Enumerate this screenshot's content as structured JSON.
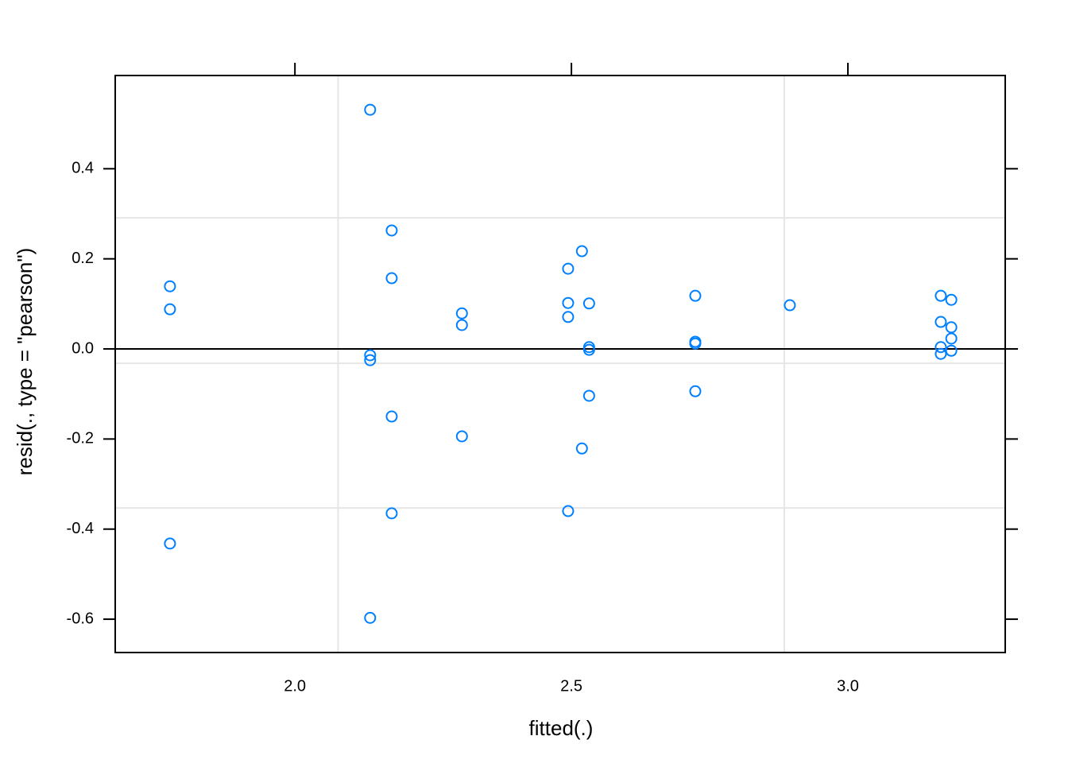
{
  "chart_data": {
    "type": "scatter",
    "x_label": "fitted(.)",
    "y_label": "resid(., type = \"pearson\")",
    "series": [
      {
        "color": "#0080ff",
        "x": [
          1.774,
          1.774,
          1.774,
          2.136,
          2.136,
          2.136,
          2.136,
          2.175,
          2.175,
          2.175,
          2.175,
          2.302,
          2.302,
          2.302,
          2.494,
          2.494,
          2.494,
          2.494,
          2.519,
          2.519,
          2.532,
          2.532,
          2.532,
          2.532,
          2.724,
          2.724,
          2.724,
          2.724,
          2.895,
          3.168,
          3.168,
          3.168,
          3.168,
          3.187,
          3.187,
          3.187,
          3.187
        ],
        "values": [
          0.139,
          0.088,
          -0.432,
          0.531,
          -0.014,
          -0.025,
          -0.597,
          0.263,
          0.157,
          -0.15,
          -0.365,
          0.079,
          0.053,
          -0.194,
          0.178,
          0.102,
          0.071,
          -0.36,
          0.217,
          -0.221,
          0.101,
          0.004,
          -0.002,
          -0.104,
          0.118,
          0.016,
          0.012,
          -0.094,
          0.097,
          0.118,
          0.06,
          0.004,
          -0.011,
          0.109,
          0.048,
          0.023,
          -0.004
        ]
      }
    ],
    "xlim": [
      1.675,
      3.2845
    ],
    "ylim": [
      -0.674,
      0.607
    ],
    "xticks": [
      {
        "value": 2,
        "label": "2.0"
      },
      2.5,
      {
        "value": 3,
        "label": "3.0"
      }
    ],
    "yticks": [
      -0.6,
      -0.4,
      -0.2,
      {
        "value": 0,
        "label": "0.0"
      },
      0.2,
      0.4
    ],
    "grid_x": [
      2.078,
      2.885
    ],
    "grid_y": [
      0.291,
      -0.032,
      -0.353
    ],
    "reference_line_y": 0
  }
}
